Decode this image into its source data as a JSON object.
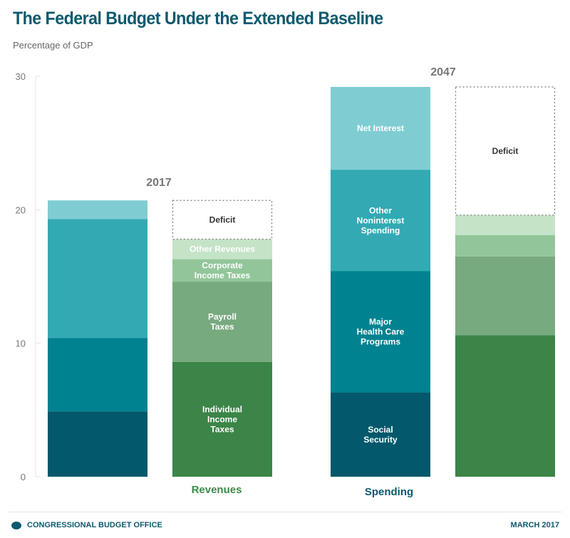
{
  "header": {
    "title": "The Federal Budget Under the Extended Baseline",
    "subtitle": "Percentage of GDP"
  },
  "footer": {
    "organization": "CONGRESSIONAL BUDGET OFFICE",
    "logo_icon": "cbo-logo-icon",
    "date": "MARCH 2017"
  },
  "chart_data": {
    "type": "bar",
    "stacked": true,
    "title": "The Federal Budget Under the Extended Baseline",
    "ylabel": "Percentage of GDP",
    "ylim": [
      0,
      30
    ],
    "yticks": [
      0,
      10,
      20,
      30
    ],
    "grid": false,
    "group_labels": [
      {
        "label": "Revenues",
        "color": "#3b8a48"
      },
      {
        "label": "Spending",
        "color": "#0c5a6e"
      }
    ],
    "years": [
      "2017",
      "2047"
    ],
    "bars": [
      {
        "year": "2017",
        "kind": "spending",
        "segments": [
          {
            "name": "Social Security",
            "value": 4.9,
            "color": "#03586b",
            "show_label": false
          },
          {
            "name": "Major Health Care Programs",
            "value": 5.5,
            "color": "#008290",
            "show_label": false
          },
          {
            "name": "Other Noninterest Spending",
            "value": 8.9,
            "color": "#33a9b3",
            "show_label": false
          },
          {
            "name": "Net Interest",
            "value": 1.4,
            "color": "#7fcdd3",
            "show_label": false
          }
        ]
      },
      {
        "year": "2017",
        "kind": "revenues",
        "segments": [
          {
            "name": "Individual Income Taxes",
            "label_lines": [
              "Individual",
              "Income",
              "Taxes"
            ],
            "value": 8.6,
            "color": "#3b8548",
            "show_label": true
          },
          {
            "name": "Payroll Taxes",
            "label_lines": [
              "Payroll",
              "Taxes"
            ],
            "value": 6.0,
            "color": "#77aa7e",
            "show_label": true
          },
          {
            "name": "Corporate Income Taxes",
            "label_lines": [
              "Corporate",
              "Income Taxes"
            ],
            "value": 1.7,
            "color": "#92c69a",
            "show_label": true
          },
          {
            "name": "Other Revenues",
            "label_lines": [
              "Other Revenues"
            ],
            "value": 1.5,
            "color": "#c4e3c7",
            "show_label": true
          },
          {
            "name": "Deficit",
            "label_lines": [
              "Deficit"
            ],
            "value": 2.9,
            "color": "none",
            "deficit": true,
            "show_label": true
          }
        ]
      },
      {
        "year": "2047",
        "kind": "spending",
        "segments": [
          {
            "name": "Social Security",
            "label_lines": [
              "Social",
              "Security"
            ],
            "value": 6.3,
            "color": "#03586b",
            "show_label": true
          },
          {
            "name": "Major Health Care Programs",
            "label_lines": [
              "Major",
              "Health Care",
              "Programs"
            ],
            "value": 9.1,
            "color": "#008290",
            "show_label": true
          },
          {
            "name": "Other Noninterest Spending",
            "label_lines": [
              "Other",
              "Noninterest",
              "Spending"
            ],
            "value": 7.6,
            "color": "#33a9b3",
            "show_label": true
          },
          {
            "name": "Net Interest",
            "label_lines": [
              "Net Interest"
            ],
            "value": 6.2,
            "color": "#7fcdd3",
            "show_label": true
          }
        ]
      },
      {
        "year": "2047",
        "kind": "revenues",
        "segments": [
          {
            "name": "Individual Income Taxes",
            "value": 10.6,
            "color": "#3b8548",
            "show_label": false
          },
          {
            "name": "Payroll Taxes",
            "value": 5.9,
            "color": "#77aa7e",
            "show_label": false
          },
          {
            "name": "Corporate Income Taxes",
            "value": 1.6,
            "color": "#92c69a",
            "show_label": false
          },
          {
            "name": "Other Revenues",
            "value": 1.5,
            "color": "#c4e3c7",
            "show_label": false
          },
          {
            "name": "Deficit",
            "label_lines": [
              "Deficit"
            ],
            "value": 9.6,
            "color": "none",
            "deficit": true,
            "show_label": true
          }
        ]
      }
    ]
  }
}
